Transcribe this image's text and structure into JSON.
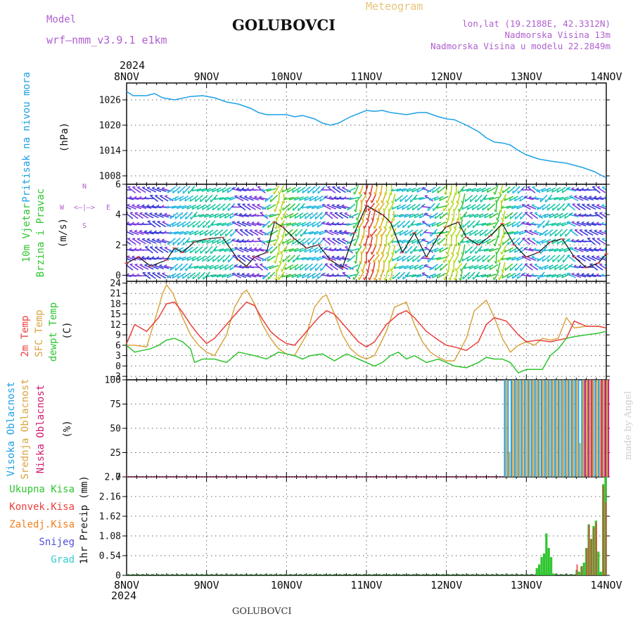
{
  "header": {
    "model_label": "Model",
    "model_name": "wrf—nmm_v3.9.1 e1km",
    "title": "GOLUBOVCI",
    "meteogram": "Meteogram",
    "lonlat": "lon,lat (19.2188E, 42.3312N)",
    "elevation": "Nadmorska Visina 13m",
    "model_elevation": "Nadmorska Visina u modelu 22.2849m",
    "top_year": "2024",
    "bottom_year": "2024",
    "footer_title": "GOLUBOVCI",
    "credit": "made by Angel"
  },
  "colors": {
    "pressure": "#1ea0e6",
    "t2m": "#e8403c",
    "sfc": "#d9a441",
    "dewpt": "#2fc52f",
    "cloud_high": "#1ea0e6",
    "cloud_mid": "#d9a441",
    "cloud_low": "#d01a70",
    "total_precip": "#2fc52f",
    "conv_precip": "#e8403c",
    "frz_precip": "#ee8020",
    "snow": "#5050d8",
    "hail": "#33cccc",
    "purple_text": "#b060d0",
    "wind_speed_line": "#111111",
    "wind_gust_marks": "#e05050"
  },
  "x_axis": {
    "labels": [
      "8NOV",
      "9NOV",
      "10NOV",
      "11NOV",
      "12NOV",
      "13NOV",
      "14NOV"
    ]
  },
  "wind_compass": {
    "n": "N",
    "s": "S",
    "w": "W",
    "e": "E",
    "glyph": "<—|—>"
  },
  "chart_data": [
    {
      "type": "line",
      "panel": "pressure",
      "ylabel_title": "Pritisak na nivou mora",
      "ylabel_unit": "(hPa)",
      "ylim": [
        1006,
        1030
      ],
      "yticks": [
        1008,
        1014,
        1020,
        1026
      ],
      "ytick_labels": [
        "1008",
        "1014",
        "1020",
        "1026"
      ],
      "grid": true,
      "series": [
        {
          "x": [
            0,
            0.08,
            0.25,
            0.35,
            0.45,
            0.6,
            0.8,
            0.95,
            1.1,
            1.25,
            1.4,
            1.55,
            1.65,
            1.75,
            2.0,
            2.1,
            2.2,
            2.35,
            2.45,
            2.55,
            2.65,
            2.8,
            3.0,
            3.1,
            3.2,
            3.3,
            3.5,
            3.65,
            3.75,
            3.9,
            4.0,
            4.1,
            4.25,
            4.4,
            4.5,
            4.6,
            4.7,
            4.8,
            4.9,
            5.0,
            5.15,
            5.3,
            5.5,
            5.7,
            5.85,
            6.0
          ],
          "y": [
            1028,
            1027,
            1027,
            1027.5,
            1026.5,
            1026,
            1026.8,
            1027,
            1026.5,
            1025.5,
            1025,
            1024,
            1023,
            1022.5,
            1022.5,
            1022,
            1022.3,
            1021.5,
            1020.5,
            1020,
            1020.5,
            1022,
            1023.5,
            1023.3,
            1023.5,
            1023,
            1022.5,
            1023,
            1023,
            1022,
            1021.5,
            1021.3,
            1020,
            1018.5,
            1017,
            1016,
            1015.8,
            1015.3,
            1014,
            1013,
            1012,
            1011.5,
            1011,
            1010,
            1009,
            1007.5
          ]
        }
      ]
    },
    {
      "type": "line",
      "panel": "wind",
      "ylabel_title": "10m Vjetar",
      "ylabel_title2": "Brzina i Pravac",
      "ylabel_unit": "(m/s)",
      "ylim": [
        -0.4,
        6
      ],
      "yticks": [
        0,
        2,
        4,
        6
      ],
      "ytick_labels": [
        "0",
        "2",
        "4",
        "6"
      ],
      "grid": true,
      "series": [
        {
          "name": "speed",
          "x": [
            0,
            0.15,
            0.3,
            0.5,
            0.6,
            0.7,
            0.85,
            1.0,
            1.2,
            1.4,
            1.5,
            1.6,
            1.75,
            1.85,
            1.95,
            2.1,
            2.25,
            2.4,
            2.55,
            2.7,
            2.85,
            3.0,
            3.1,
            3.2,
            3.3,
            3.45,
            3.6,
            3.75,
            3.9,
            4.0,
            4.15,
            4.25,
            4.4,
            4.55,
            4.7,
            4.85,
            5.0,
            5.15,
            5.3,
            5.45,
            5.6,
            5.75,
            5.9,
            6.0
          ],
          "y": [
            0.8,
            1.2,
            0.6,
            1.0,
            1.8,
            1.5,
            2.2,
            2.4,
            2.5,
            1.0,
            0.6,
            1.2,
            1.5,
            3.5,
            3.2,
            2.4,
            1.8,
            2.0,
            1.0,
            0.5,
            2.8,
            4.6,
            4.3,
            4.0,
            3.5,
            1.5,
            2.8,
            1.2,
            2.6,
            3.2,
            3.5,
            2.5,
            2.0,
            2.6,
            3.4,
            2.0,
            1.2,
            1.5,
            2.2,
            2.4,
            1.2,
            0.5,
            0.8,
            1.4
          ]
        }
      ]
    },
    {
      "type": "line",
      "panel": "temperature",
      "ylabel_title": "2m Temp",
      "ylabel_title2": "SFC Temp",
      "ylabel_title3": "dewpt Temp",
      "ylabel_unit": "(C)",
      "ylim": [
        -4,
        24.5
      ],
      "yticks": [
        -3,
        0,
        3,
        6,
        9,
        12,
        15,
        18,
        21,
        24
      ],
      "ytick_labels": [
        "−3",
        "0",
        "3",
        "6",
        "9",
        "12",
        "15",
        "18",
        "21",
        "24"
      ],
      "grid": true,
      "series": [
        {
          "name": "2m Temp",
          "x": [
            0,
            0.1,
            0.25,
            0.4,
            0.5,
            0.6,
            0.7,
            0.8,
            0.9,
            1.0,
            1.1,
            1.25,
            1.4,
            1.5,
            1.6,
            1.7,
            1.8,
            1.9,
            2.0,
            2.1,
            2.25,
            2.4,
            2.5,
            2.6,
            2.75,
            2.9,
            3.0,
            3.1,
            3.25,
            3.4,
            3.5,
            3.6,
            3.75,
            3.9,
            4.0,
            4.1,
            4.25,
            4.4,
            4.5,
            4.6,
            4.75,
            4.9,
            5.0,
            5.15,
            5.3,
            5.4,
            5.5,
            5.6,
            5.75,
            5.9,
            6.0
          ],
          "y": [
            6.5,
            12,
            10,
            14,
            18,
            18.5,
            15.5,
            12,
            9,
            6.5,
            8,
            12,
            16,
            18.5,
            17.5,
            13.5,
            10,
            8,
            6.5,
            6,
            10,
            14,
            16,
            15,
            11,
            7,
            5.5,
            7,
            12,
            15,
            16,
            14,
            10,
            7.5,
            6,
            5.5,
            4.5,
            7,
            12,
            14,
            13,
            9,
            7,
            7.5,
            7,
            7.5,
            8,
            13,
            11.5,
            11.5,
            11
          ]
        },
        {
          "name": "SFC Temp",
          "x": [
            0,
            0.1,
            0.25,
            0.35,
            0.45,
            0.5,
            0.58,
            0.7,
            0.8,
            0.9,
            1.0,
            1.1,
            1.25,
            1.35,
            1.45,
            1.5,
            1.6,
            1.7,
            1.8,
            1.9,
            2.0,
            2.1,
            2.25,
            2.35,
            2.45,
            2.5,
            2.6,
            2.7,
            2.8,
            2.9,
            3.0,
            3.1,
            3.25,
            3.35,
            3.45,
            3.5,
            3.6,
            3.7,
            3.8,
            3.9,
            4.0,
            4.1,
            4.25,
            4.35,
            4.45,
            4.5,
            4.6,
            4.7,
            4.8,
            4.9,
            5.0,
            5.1,
            5.2,
            5.3,
            5.4,
            5.5,
            5.6,
            5.75,
            5.9,
            6.0
          ],
          "y": [
            6,
            6,
            5.5,
            13,
            21,
            23.5,
            21,
            14,
            9,
            6,
            4,
            3,
            9,
            17,
            21,
            22,
            18,
            12,
            8,
            5,
            3.5,
            3,
            9,
            17,
            20,
            20.5,
            15,
            9,
            5,
            3,
            2,
            3,
            10,
            17,
            18,
            18.5,
            12,
            7,
            4,
            2.5,
            1.5,
            1.5,
            8,
            16,
            18,
            19,
            14,
            8,
            4,
            6,
            7,
            6,
            8,
            7.5,
            8,
            14,
            11,
            11.5,
            11.5,
            11
          ]
        },
        {
          "name": "dewpt Temp",
          "x": [
            0,
            0.1,
            0.2,
            0.3,
            0.4,
            0.5,
            0.6,
            0.7,
            0.8,
            0.85,
            0.95,
            1.1,
            1.25,
            1.4,
            1.5,
            1.6,
            1.75,
            1.9,
            2.0,
            2.1,
            2.2,
            2.3,
            2.45,
            2.6,
            2.75,
            2.9,
            3.0,
            3.1,
            3.2,
            3.3,
            3.4,
            3.5,
            3.6,
            3.75,
            3.9,
            4.0,
            4.1,
            4.25,
            4.4,
            4.5,
            4.6,
            4.7,
            4.8,
            4.9,
            5.0,
            5.1,
            5.2,
            5.3,
            5.4,
            5.5,
            5.6,
            5.75,
            5.9,
            6.0
          ],
          "y": [
            6,
            4,
            4.5,
            5,
            6,
            7.5,
            8,
            7,
            5,
            1,
            2,
            2,
            1,
            4,
            3.5,
            3,
            2,
            4,
            3.5,
            3,
            2,
            3,
            3.5,
            1.5,
            3.5,
            2,
            1,
            0,
            1,
            3,
            4,
            2,
            3,
            1,
            2,
            1,
            0,
            -0.5,
            1,
            2.5,
            2,
            2,
            1,
            -2,
            -1,
            -1,
            -1,
            3,
            5,
            8,
            8.5,
            9,
            9.5,
            10
          ]
        }
      ]
    },
    {
      "type": "bar",
      "panel": "clouds",
      "ylabel_title": "Visoka Oblacnost",
      "ylabel_title2": "Srednja Oblacnost",
      "ylabel_title3": "Niska Oblacnost",
      "ylabel_unit": "(%)",
      "ylim": [
        0,
        100
      ],
      "yticks": [
        0,
        25,
        50,
        75,
        100
      ],
      "ytick_labels": [
        "0",
        "25",
        "50",
        "75",
        "100"
      ],
      "grid": true,
      "x_start": 4.72,
      "x_end": 6.0,
      "x_step": 0.042,
      "series": [
        {
          "name": "Visoka Oblacnost",
          "values": [
            100,
            100,
            100,
            100,
            100,
            100,
            100,
            100,
            100,
            100,
            100,
            100,
            100,
            100,
            100,
            100,
            100,
            100,
            100,
            100,
            100,
            100,
            100,
            100,
            100,
            100,
            100,
            100,
            100,
            100,
            100
          ]
        },
        {
          "name": "Srednja Oblacnost",
          "values": [
            100,
            26,
            100,
            100,
            100,
            100,
            100,
            100,
            100,
            100,
            100,
            100,
            100,
            100,
            100,
            100,
            100,
            100,
            100,
            100,
            100,
            100,
            35,
            100,
            100,
            100,
            100,
            100,
            100,
            100,
            100
          ]
        },
        {
          "name": "Niska Oblacnost",
          "values": [
            0,
            0,
            0,
            0,
            0,
            0,
            0,
            0,
            0,
            0,
            0,
            0,
            0,
            0,
            0,
            0,
            0,
            0,
            0,
            0,
            0,
            0,
            0,
            100,
            100,
            100,
            0,
            0,
            100,
            100,
            100
          ]
        }
      ]
    },
    {
      "type": "bar",
      "panel": "precip",
      "legend": [
        "Ukupna Kisa",
        "Konvek.Kisa",
        "Zaledj.Kisa",
        "Snijeg",
        "Grad"
      ],
      "ylabel_title": "1hr Precip",
      "ylabel_unit": "(mm)",
      "ylim": [
        0,
        2.7
      ],
      "yticks": [
        0,
        0.54,
        1.08,
        1.62,
        2.16,
        2.7
      ],
      "ytick_labels": [
        "0",
        "0.54",
        "1.08",
        "1.62",
        "2.16",
        "2.7"
      ],
      "grid": true,
      "series": [
        {
          "name": "Ukupna Kisa",
          "x": [
            5.13,
            5.16,
            5.19,
            5.22,
            5.25,
            5.28,
            5.31,
            5.34,
            5.63,
            5.66,
            5.69,
            5.72,
            5.75,
            5.78,
            5.81,
            5.84,
            5.87,
            5.9,
            5.93,
            5.96,
            5.99
          ],
          "values": [
            0.2,
            0.3,
            0.5,
            0.6,
            1.15,
            0.75,
            0.5,
            0.05,
            0.15,
            0.1,
            0.25,
            0.35,
            0.75,
            1.4,
            1.0,
            1.35,
            1.5,
            0.65,
            0.1,
            2.5,
            2.7
          ]
        },
        {
          "name": "Konvek.Kisa",
          "x": [
            5.63,
            5.69,
            5.75,
            5.78,
            5.81,
            5.84,
            5.87,
            5.96,
            5.99
          ],
          "values": [
            0.3,
            0.25,
            0.75,
            1.38,
            1.0,
            1.3,
            1.45,
            2.45,
            2.0
          ]
        }
      ]
    }
  ]
}
